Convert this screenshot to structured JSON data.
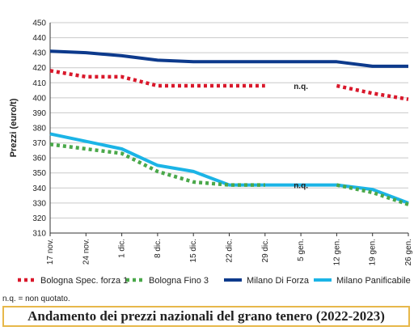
{
  "chart_data": {
    "type": "line",
    "title": "",
    "ylabel": "Prezzi (euro/t)",
    "xlabel": "",
    "ylim": [
      310,
      450
    ],
    "ytick_step": 10,
    "grid": "horizontal",
    "legend_position": "bottom",
    "categories": [
      "17 nov.",
      "24 nov.",
      "1 dic.",
      "8 dic.",
      "15 dic.",
      "22 dic.",
      "29 dic.",
      "5 gen.",
      "12 gen.",
      "19 gen.",
      "26 gen."
    ],
    "series": [
      {
        "name": "Bologna Spec. forza 1",
        "color": "#d9182b",
        "style": "dotted",
        "values": [
          418,
          414,
          414,
          408,
          408,
          408,
          408,
          null,
          408,
          403,
          399
        ]
      },
      {
        "name": "Bologna Fino 3",
        "color": "#4aa84a",
        "style": "dotted",
        "values": [
          369,
          366,
          363,
          351,
          344,
          342,
          342,
          null,
          342,
          337,
          329
        ]
      },
      {
        "name": "Milano Di Forza",
        "color": "#0d3a8c",
        "style": "solid",
        "values": [
          431,
          430,
          428,
          425,
          424,
          424,
          424,
          424,
          424,
          421,
          421
        ]
      },
      {
        "name": "Milano Panificabile",
        "color": "#1bb4e6",
        "style": "solid",
        "values": [
          376,
          371,
          366,
          355,
          351,
          342,
          342,
          342,
          342,
          339,
          330
        ]
      }
    ],
    "annotations": [
      {
        "text": "n.q.",
        "x": "5 gen.",
        "y": 408
      },
      {
        "text": "n.q.",
        "x": "5 gen.",
        "y": 342
      }
    ]
  },
  "footnote": "n.q. = non quotato.",
  "caption": "Andamento dei prezzi nazionali del grano tenero (2022-2023)"
}
